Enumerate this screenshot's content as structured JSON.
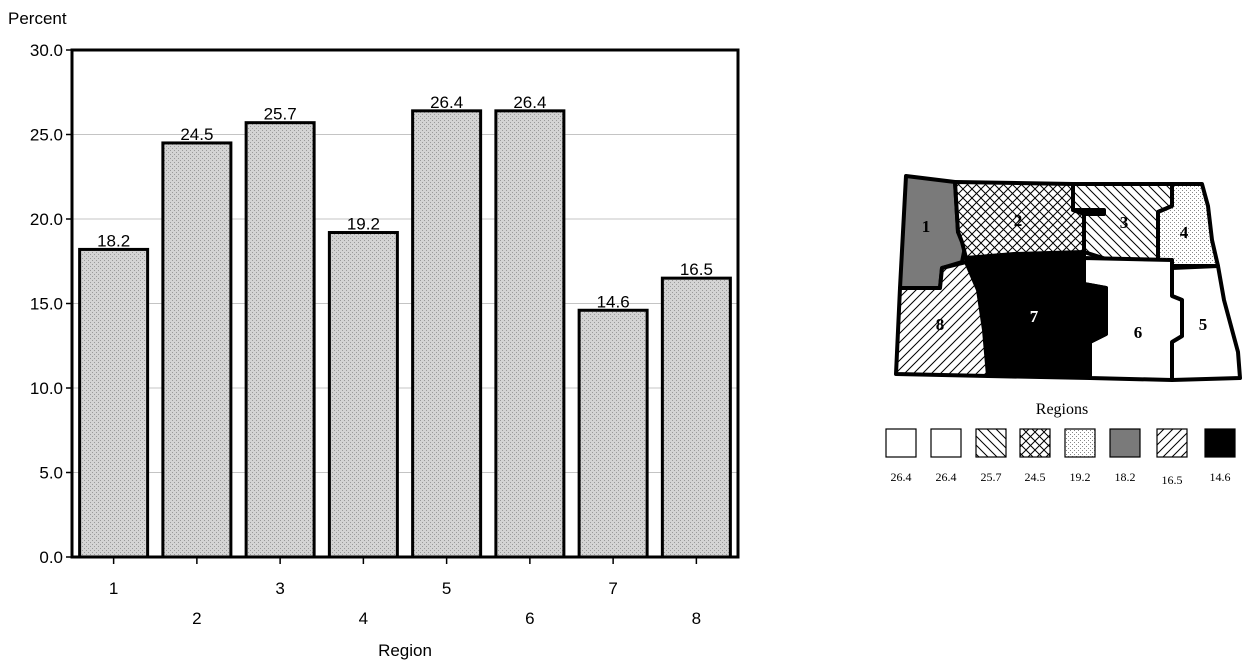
{
  "chart_data": {
    "type": "bar",
    "ylabel": "Percent",
    "xlabel": "Region",
    "ylim": [
      0,
      30
    ],
    "yticks": [
      "0.0",
      "5.0",
      "10.0",
      "15.0",
      "20.0",
      "25.0",
      "30.0"
    ],
    "categories": [
      "1",
      "2",
      "3",
      "4",
      "5",
      "6",
      "7",
      "8"
    ],
    "values": [
      18.2,
      24.5,
      25.7,
      19.2,
      26.4,
      26.4,
      14.6,
      16.5
    ],
    "value_labels": [
      "18.2",
      "24.5",
      "25.7",
      "19.2",
      "26.4",
      "26.4",
      "14.6",
      "16.5"
    ],
    "grid": true,
    "bar_color": "#c8c8c8"
  },
  "map": {
    "region_labels": [
      "1",
      "2",
      "3",
      "4",
      "5",
      "6",
      "7",
      "8"
    ],
    "legend_title": "Regions",
    "legend_values": [
      "26.4",
      "26.4",
      "25.7",
      "24.5",
      "19.2",
      "18.2",
      "16.5",
      "14.6"
    ],
    "legend_patterns": [
      "white",
      "white",
      "diagonal-back",
      "crosshatch",
      "dots",
      "gray",
      "diagonal",
      "black"
    ]
  }
}
